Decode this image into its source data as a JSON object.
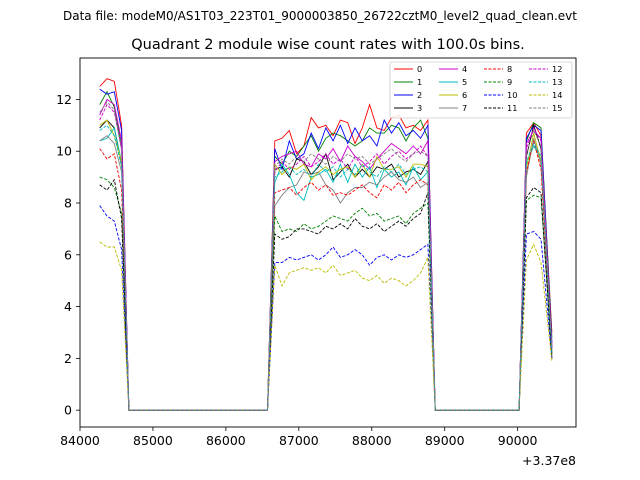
{
  "chart_data": {
    "type": "line",
    "suptitle": "Data file: modeM0/AS1T03_223T01_9000003850_26722cztM0_level2_quad_clean.evt",
    "title": "Quadrant 2 module wise count rates with 100.0s bins.",
    "xlabel": "",
    "ylabel": "",
    "x_offset_label": "+3.37e8",
    "xlim": [
      84000,
      90800
    ],
    "ylim": [
      -0.65,
      13.6
    ],
    "x_ticks": [
      84000,
      85000,
      86000,
      87000,
      88000,
      89000,
      90000
    ],
    "x_tick_labels": [
      "84000",
      "85000",
      "86000",
      "87000",
      "88000",
      "89000",
      "90000"
    ],
    "y_ticks": [
      0,
      2,
      4,
      6,
      8,
      10,
      12
    ],
    "y_tick_labels": [
      "0",
      "2",
      "4",
      "6",
      "8",
      "10",
      "12"
    ],
    "legend_position": "top-right",
    "segments": [
      {
        "start": 84270,
        "step": 100,
        "count": 4,
        "zero_until": 86570
      },
      {
        "start": 86670,
        "step": 100,
        "count": 22,
        "zero_until": 90020
      },
      {
        "start": 90120,
        "step": 100,
        "count": 4,
        "end_at": 90470
      }
    ],
    "series": [
      {
        "name": "0",
        "color": "#ff0000",
        "dash": "solid",
        "seg1": [
          12.5,
          12.8,
          12.7,
          11.0
        ],
        "seg2": [
          10.4,
          10.5,
          10.8,
          9.9,
          10.2,
          11.3,
          10.9,
          11.0,
          10.6,
          11.2,
          11.1,
          10.3,
          10.9,
          11.8,
          10.9,
          10.8,
          11.3,
          11.4,
          10.9,
          11.0,
          10.8,
          11.2
        ],
        "seg3": [
          10.7,
          11.1,
          10.6,
          3.0
        ]
      },
      {
        "name": "1",
        "color": "#008000",
        "dash": "solid",
        "seg1": [
          11.8,
          12.3,
          11.7,
          10.2
        ],
        "seg2": [
          9.8,
          9.5,
          10.0,
          9.8,
          10.2,
          10.6,
          10.0,
          10.5,
          10.7,
          10.6,
          10.4,
          10.2,
          10.4,
          10.9,
          10.7,
          10.7,
          11.0,
          10.9,
          10.4,
          10.9,
          11.2,
          10.5
        ],
        "seg3": [
          10.4,
          11.1,
          10.9,
          2.8
        ]
      },
      {
        "name": "2",
        "color": "#0000ff",
        "dash": "solid",
        "seg1": [
          12.4,
          12.2,
          12.3,
          10.8
        ],
        "seg2": [
          10.1,
          9.3,
          10.4,
          9.7,
          9.9,
          10.7,
          10.1,
          10.9,
          10.4,
          11.0,
          10.3,
          10.9,
          10.4,
          10.6,
          10.2,
          11.2,
          10.7,
          11.1,
          10.6,
          10.8,
          10.5,
          11.0
        ],
        "seg3": [
          10.5,
          11.0,
          10.8,
          2.6
        ]
      },
      {
        "name": "3",
        "color": "#000000",
        "dash": "solid",
        "seg1": [
          10.9,
          11.2,
          10.9,
          9.5
        ],
        "seg2": [
          9.3,
          9.4,
          9.0,
          9.7,
          9.6,
          9.1,
          9.4,
          9.9,
          8.9,
          9.2,
          9.5,
          9.0,
          9.3,
          9.0,
          9.4,
          9.3,
          9.5,
          9.0,
          9.2,
          9.3,
          9.1,
          9.6
        ],
        "seg3": [
          9.8,
          11.0,
          10.1,
          2.4
        ]
      },
      {
        "name": "4",
        "color": "#cc00cc",
        "dash": "solid",
        "seg1": [
          11.4,
          12.0,
          11.8,
          10.4
        ],
        "seg2": [
          9.6,
          9.8,
          9.9,
          10.0,
          9.5,
          9.4,
          9.9,
          9.7,
          10.1,
          9.6,
          10.2,
          9.8,
          9.6,
          9.3,
          9.7,
          10.0,
          10.3,
          10.1,
          9.9,
          10.2,
          9.9,
          10.4
        ],
        "seg3": [
          10.3,
          10.8,
          10.5,
          2.5
        ]
      },
      {
        "name": "5",
        "color": "#00bbbb",
        "dash": "solid",
        "seg1": [
          10.4,
          10.5,
          10.9,
          9.6
        ],
        "seg2": [
          8.8,
          9.5,
          9.1,
          8.4,
          8.1,
          9.0,
          9.1,
          9.3,
          8.8,
          9.5,
          8.8,
          9.5,
          9.0,
          9.4,
          8.6,
          9.3,
          9.0,
          9.2,
          8.7,
          9.4,
          8.9,
          9.2
        ],
        "seg3": [
          9.5,
          10.2,
          9.7,
          2.2
        ]
      },
      {
        "name": "6",
        "color": "#bbbb00",
        "dash": "solid",
        "seg1": [
          11.0,
          11.2,
          10.6,
          9.6
        ],
        "seg2": [
          9.5,
          9.1,
          9.4,
          9.3,
          9.5,
          8.9,
          9.2,
          9.4,
          9.1,
          9.3,
          9.4,
          9.0,
          9.5,
          9.0,
          9.8,
          9.3,
          9.3,
          9.4,
          9.0,
          9.5,
          9.5,
          9.4
        ],
        "seg3": [
          9.3,
          10.7,
          9.6,
          2.3
        ]
      },
      {
        "name": "7",
        "color": "#808080",
        "dash": "solid",
        "seg1": [
          10.4,
          10.6,
          10.3,
          9.2
        ],
        "seg2": [
          7.9,
          8.3,
          8.6,
          8.7,
          9.2,
          9.1,
          9.2,
          8.7,
          8.5,
          8.0,
          8.4,
          8.6,
          8.6,
          8.8,
          8.7,
          9.0,
          9.2,
          8.9,
          8.8,
          9.0,
          8.6,
          8.8
        ],
        "seg3": [
          9.0,
          10.5,
          9.5,
          2.1
        ]
      },
      {
        "name": "8",
        "color": "#ff0000",
        "dash": "dashed",
        "seg1": [
          10.1,
          9.7,
          9.9,
          8.5
        ],
        "seg2": [
          8.4,
          8.5,
          8.6,
          8.3,
          8.6,
          8.8,
          8.5,
          8.7,
          8.3,
          8.4,
          8.3,
          8.5,
          8.7,
          8.4,
          8.2,
          8.7,
          8.5,
          8.8,
          8.4,
          8.7,
          8.9,
          8.7
        ],
        "seg3": [
          9.2,
          10.4,
          9.3,
          2.2
        ]
      },
      {
        "name": "9",
        "color": "#008000",
        "dash": "dashed",
        "seg1": [
          9.0,
          8.9,
          8.6,
          7.6
        ],
        "seg2": [
          7.5,
          6.9,
          7.0,
          6.9,
          7.2,
          7.0,
          7.1,
          7.3,
          7.5,
          7.4,
          7.3,
          7.6,
          7.8,
          7.5,
          7.6,
          7.3,
          7.4,
          7.5,
          7.2,
          7.6,
          7.8,
          8.0
        ],
        "seg3": [
          8.1,
          8.3,
          8.2,
          2.1
        ]
      },
      {
        "name": "10",
        "color": "#0000ff",
        "dash": "dashed",
        "seg1": [
          7.9,
          7.5,
          7.3,
          6.2
        ],
        "seg2": [
          5.7,
          5.7,
          5.9,
          5.8,
          5.9,
          6.0,
          5.8,
          6.0,
          6.3,
          5.9,
          6.0,
          6.2,
          6.0,
          5.6,
          5.9,
          6.0,
          5.8,
          6.0,
          5.9,
          6.0,
          6.2,
          6.4
        ],
        "seg3": [
          6.8,
          6.9,
          6.6,
          2.0
        ]
      },
      {
        "name": "11",
        "color": "#000000",
        "dash": "dashed",
        "seg1": [
          8.7,
          8.5,
          8.9,
          7.4
        ],
        "seg2": [
          6.8,
          6.6,
          6.7,
          7.0,
          7.0,
          6.9,
          6.8,
          7.1,
          7.0,
          7.2,
          7.0,
          7.4,
          7.1,
          7.0,
          7.2,
          6.9,
          7.1,
          7.3,
          7.1,
          7.4,
          7.6,
          8.4
        ],
        "seg3": [
          8.2,
          8.6,
          8.4,
          2.0
        ]
      },
      {
        "name": "12",
        "color": "#cc00cc",
        "dash": "dashed",
        "seg1": [
          11.2,
          11.8,
          11.5,
          10.1
        ],
        "seg2": [
          9.2,
          9.6,
          9.3,
          9.5,
          9.8,
          9.4,
          9.6,
          9.9,
          9.5,
          9.7,
          9.3,
          9.8,
          9.4,
          9.6,
          9.9,
          9.5,
          9.8,
          10.0,
          9.7,
          9.9,
          10.2,
          9.8
        ],
        "seg3": [
          10.1,
          10.9,
          10.4,
          2.4
        ]
      },
      {
        "name": "13",
        "color": "#00bbbb",
        "dash": "dashed",
        "seg1": [
          10.8,
          11.0,
          10.6,
          9.4
        ],
        "seg2": [
          9.0,
          9.2,
          9.4,
          9.1,
          9.3,
          9.0,
          9.5,
          9.2,
          9.4,
          9.0,
          9.3,
          9.1,
          9.5,
          9.2,
          9.0,
          9.4,
          9.2,
          9.5,
          9.1,
          9.3,
          9.4,
          9.2
        ],
        "seg3": [
          9.6,
          10.3,
          9.8,
          2.2
        ]
      },
      {
        "name": "14",
        "color": "#bbbb00",
        "dash": "dashed",
        "seg1": [
          6.5,
          6.3,
          6.3,
          5.4
        ],
        "seg2": [
          5.6,
          4.8,
          5.3,
          5.4,
          5.5,
          5.4,
          5.5,
          5.3,
          5.6,
          5.2,
          5.3,
          5.4,
          5.1,
          5.0,
          5.2,
          4.9,
          5.1,
          5.0,
          4.8,
          5.0,
          5.3,
          5.9
        ],
        "seg3": [
          5.8,
          6.4,
          5.7,
          1.9
        ]
      },
      {
        "name": "15",
        "color": "#808080",
        "dash": "dashed",
        "seg1": [
          11.5,
          11.9,
          11.6,
          10.0
        ],
        "seg2": [
          9.4,
          9.7,
          9.5,
          9.8,
          9.6,
          9.9,
          9.7,
          9.5,
          9.8,
          9.6,
          9.9,
          9.7,
          9.8,
          9.5,
          9.7,
          9.9,
          10.1,
          9.8,
          9.6,
          9.9,
          10.0,
          9.8
        ],
        "seg3": [
          9.9,
          10.8,
          10.2,
          2.3
        ]
      }
    ]
  }
}
